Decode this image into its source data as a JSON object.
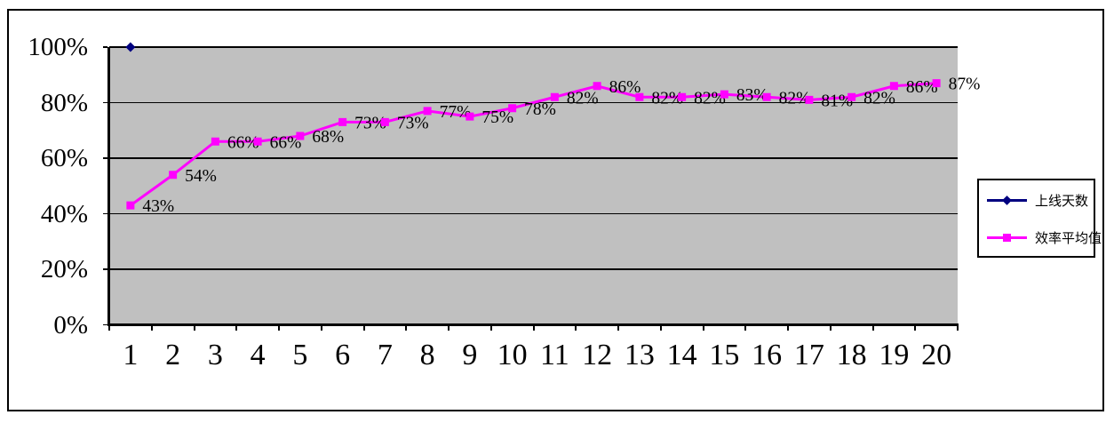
{
  "colors": {
    "chart_background": "#FFFFFF",
    "chart_border": "#000000",
    "plot_background": "#C0C0C0",
    "gridline": "#000000",
    "axis": "#000000",
    "tick_text": "#000000",
    "series_online_days": "#000080",
    "series_efficiency": "#FF00FF",
    "legend_border": "#000000"
  },
  "chart_data": {
    "type": "line",
    "title": "",
    "categories": [
      1,
      2,
      3,
      4,
      5,
      6,
      7,
      8,
      9,
      10,
      11,
      12,
      13,
      14,
      15,
      16,
      17,
      18,
      19,
      20
    ],
    "x_tick_labels": [
      "1",
      "2",
      "3",
      "4",
      "5",
      "6",
      "7",
      "8",
      "9",
      "10",
      "11",
      "12",
      "13",
      "14",
      "15",
      "16",
      "17",
      "18",
      "19",
      "20"
    ],
    "y_tick_labels": [
      "0%",
      "20%",
      "40%",
      "60%",
      "80%",
      "100%"
    ],
    "ylim": [
      0,
      100
    ],
    "y_tick_step": 20,
    "grid": true,
    "plot_background": "#C0C0C0",
    "legend_position": "right",
    "series": [
      {
        "name": "上线天数",
        "color": "#000080",
        "marker": "diamond",
        "points": [
          {
            "category": 1,
            "value": 100
          }
        ]
      },
      {
        "name": "效率平均值",
        "color": "#FF00FF",
        "marker": "square",
        "values": [
          43,
          54,
          66,
          66,
          68,
          73,
          73,
          77,
          75,
          78,
          82,
          86,
          82,
          82,
          83,
          82,
          81,
          82,
          86,
          87
        ],
        "data_labels": [
          "43%",
          "54%",
          "66%",
          "66%",
          "68%",
          "73%",
          "73%",
          "77%",
          "75%",
          "78%",
          "82%",
          "86%",
          "82%",
          "82%",
          "83%",
          "82%",
          "81%",
          "82%",
          "86%",
          "87%"
        ]
      }
    ]
  },
  "legend": {
    "items": [
      {
        "label": "上线天数",
        "marker": "diamond",
        "color": "#000080"
      },
      {
        "label": "效率平均值",
        "marker": "square",
        "color": "#FF00FF"
      }
    ]
  }
}
